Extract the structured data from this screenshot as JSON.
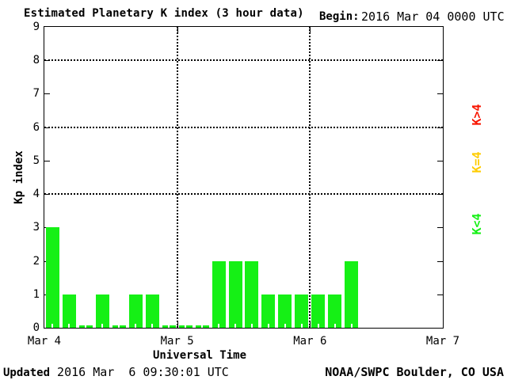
{
  "header": {
    "title": "Estimated Planetary K index (3 hour data)",
    "begin_label": "Begin:",
    "begin_value": "2016 Mar 04 0000 UTC"
  },
  "y_axis": {
    "label": "Kp index",
    "tick_labels": [
      "0",
      "1",
      "2",
      "3",
      "4",
      "5",
      "6",
      "7",
      "8",
      "9"
    ]
  },
  "x_axis": {
    "label": "Universal Time",
    "tick_labels": [
      "Mar 4",
      "Mar 5",
      "Mar 6",
      "Mar 7"
    ]
  },
  "legend": {
    "items": [
      {
        "label": "K>4",
        "color": "#f81500"
      },
      {
        "label": "K=4",
        "color": "#ffcc00"
      },
      {
        "label": "K<4",
        "color": "#15f015"
      }
    ]
  },
  "footer": {
    "updated_label": "Updated",
    "updated_value": " 2016 Mar  6 09:30:01 UTC",
    "source": "NOAA/SWPC Boulder, CO USA"
  },
  "chart_data": {
    "type": "bar",
    "title": "Estimated Planetary K index (3 hour data)",
    "xlabel": "Universal Time",
    "ylabel": "Kp index",
    "ylim": [
      0,
      9
    ],
    "x_range": [
      "2016 Mar 04 0000 UTC",
      "2016 Mar 07 0000 UTC"
    ],
    "bar_interval_hours": 3,
    "slots_per_day": 8,
    "total_slots": 24,
    "categories": [
      "Mar 4 0000",
      "Mar 4 0300",
      "Mar 4 0600",
      "Mar 4 0900",
      "Mar 4 1200",
      "Mar 4 1500",
      "Mar 4 1800",
      "Mar 4 2100",
      "Mar 5 0000",
      "Mar 5 0300",
      "Mar 5 0600",
      "Mar 5 0900",
      "Mar 5 1200",
      "Mar 5 1500",
      "Mar 5 1800",
      "Mar 5 2100",
      "Mar 6 0000",
      "Mar 6 0300",
      "Mar 6 0600"
    ],
    "values": [
      3,
      1,
      0,
      1,
      0,
      1,
      1,
      0,
      0,
      0,
      2,
      2,
      2,
      1,
      1,
      1,
      1,
      1,
      2
    ],
    "bar_color": "#15f015",
    "grid_dotted_levels": [
      4,
      6,
      8
    ],
    "day_boundaries": [
      "Mar 5",
      "Mar 6"
    ],
    "legend_position": "right-rotated",
    "color_key": {
      "green": "K<4",
      "yellow": "K=4",
      "red": "K>4"
    }
  }
}
